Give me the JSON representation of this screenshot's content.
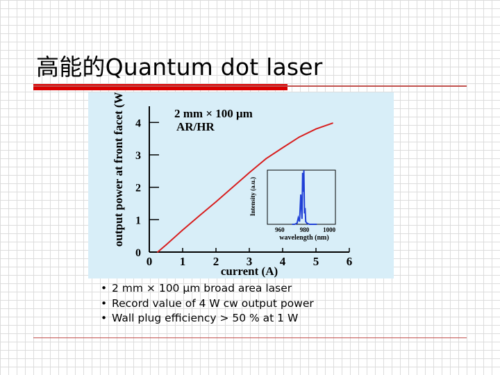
{
  "slide": {
    "title": "高能的Quantum dot laser",
    "bullets": [
      "2 mm × 100 μm broad area laser",
      "Record value of 4 W cw output power",
      "Wall plug efficiency > 50 % at 1 W"
    ]
  },
  "chart_data": {
    "type": "line",
    "xlabel": "current (A)",
    "ylabel": "output power at front facet (W)",
    "xlim": [
      0,
      6
    ],
    "ylim": [
      0,
      4.5
    ],
    "xticks": [
      "0",
      "1",
      "2",
      "3",
      "4",
      "5",
      "6"
    ],
    "yticks": [
      "0",
      "1",
      "2",
      "3",
      "4"
    ],
    "annotation": [
      "2 mm × 100 μm",
      "AR/HR"
    ],
    "series": [
      {
        "color": "#d81e1e",
        "x": [
          0.25,
          0.5,
          1.0,
          1.5,
          2.0,
          2.5,
          3.0,
          3.5,
          4.0,
          4.5,
          5.0,
          5.5
        ],
        "y": [
          0.0,
          0.22,
          0.68,
          1.12,
          1.55,
          2.0,
          2.45,
          2.88,
          3.22,
          3.55,
          3.8,
          3.98
        ]
      }
    ],
    "inset": {
      "type": "line",
      "xlabel": "wavelength (nm)",
      "ylabel": "Intensity (a.u.)",
      "xticks": [
        "960",
        "980",
        "1000"
      ],
      "xlim": [
        950,
        1005
      ],
      "color": "#1f3fd6",
      "spectrum": {
        "x": [
          970,
          972,
          974,
          975,
          976,
          977,
          978,
          978.5,
          979,
          979.5,
          980,
          980.5,
          981,
          982,
          984,
          990
        ],
        "y": [
          0,
          0,
          0.02,
          0.12,
          0.05,
          0.55,
          0.1,
          0.95,
          0.6,
          1.0,
          0.2,
          0.3,
          0.05,
          0.02,
          0,
          0
        ]
      }
    }
  }
}
